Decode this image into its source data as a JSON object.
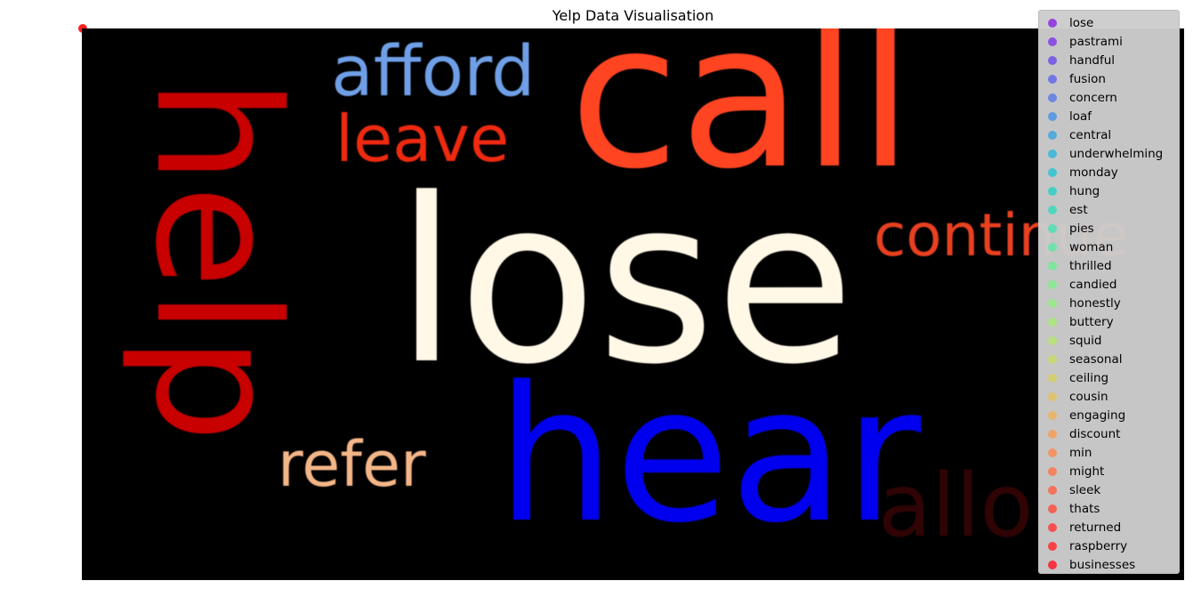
{
  "chart_data": {
    "type": "scatter",
    "title": "Yelp Data Visualisation",
    "xlabel": "",
    "ylabel": "",
    "legend_position": "right",
    "grid": false,
    "corner_label": "         ",
    "corner_point_color": "#ff2020",
    "background_color": "#000000",
    "word_cloud": [
      {
        "word": "call",
        "color": "#ff4422"
      },
      {
        "word": "help",
        "color": "#c80000"
      },
      {
        "word": "lose",
        "color": "#fff8e7"
      },
      {
        "word": "hear",
        "color": "#0000ee"
      },
      {
        "word": "afford",
        "color": "#6f9fe6"
      },
      {
        "word": "leave",
        "color": "#ee2a10"
      },
      {
        "word": "continue",
        "color": "#e84020"
      },
      {
        "word": "refer",
        "color": "#f4b688"
      },
      {
        "word": "allow",
        "color": "#300404"
      }
    ],
    "series": [
      {
        "name": "lose",
        "color": "#8b2be2"
      },
      {
        "name": "pastrami",
        "color": "#7f3de6"
      },
      {
        "name": "handful",
        "color": "#7050e8"
      },
      {
        "name": "fusion",
        "color": "#6468ea"
      },
      {
        "name": "concern",
        "color": "#5a7ce8"
      },
      {
        "name": "loaf",
        "color": "#4d92e4"
      },
      {
        "name": "central",
        "color": "#40a4de"
      },
      {
        "name": "underwhelming",
        "color": "#34b6d8"
      },
      {
        "name": "monday",
        "color": "#2cc4d0"
      },
      {
        "name": "hung",
        "color": "#2ed0c6"
      },
      {
        "name": "est",
        "color": "#3cd8bc"
      },
      {
        "name": "pies",
        "color": "#4ee0b0"
      },
      {
        "name": "woman",
        "color": "#62e6a4"
      },
      {
        "name": "thrilled",
        "color": "#72ea98"
      },
      {
        "name": "candied",
        "color": "#84ec8c"
      },
      {
        "name": "honestly",
        "color": "#96ec82"
      },
      {
        "name": "buttery",
        "color": "#a6ea78"
      },
      {
        "name": "squid",
        "color": "#b6e470"
      },
      {
        "name": "seasonal",
        "color": "#c6dc6a"
      },
      {
        "name": "ceiling",
        "color": "#d4d064"
      },
      {
        "name": "cousin",
        "color": "#e2c260"
      },
      {
        "name": "engaging",
        "color": "#eeb05c"
      },
      {
        "name": "discount",
        "color": "#f49e58"
      },
      {
        "name": "min",
        "color": "#f88c52"
      },
      {
        "name": "might",
        "color": "#fa784c"
      },
      {
        "name": "sleek",
        "color": "#fc6446"
      },
      {
        "name": "thats",
        "color": "#fe5040"
      },
      {
        "name": "returned",
        "color": "#ff3c38"
      },
      {
        "name": "raspberry",
        "color": "#ff2a30"
      },
      {
        "name": "businesses",
        "color": "#ff1a28"
      }
    ]
  }
}
